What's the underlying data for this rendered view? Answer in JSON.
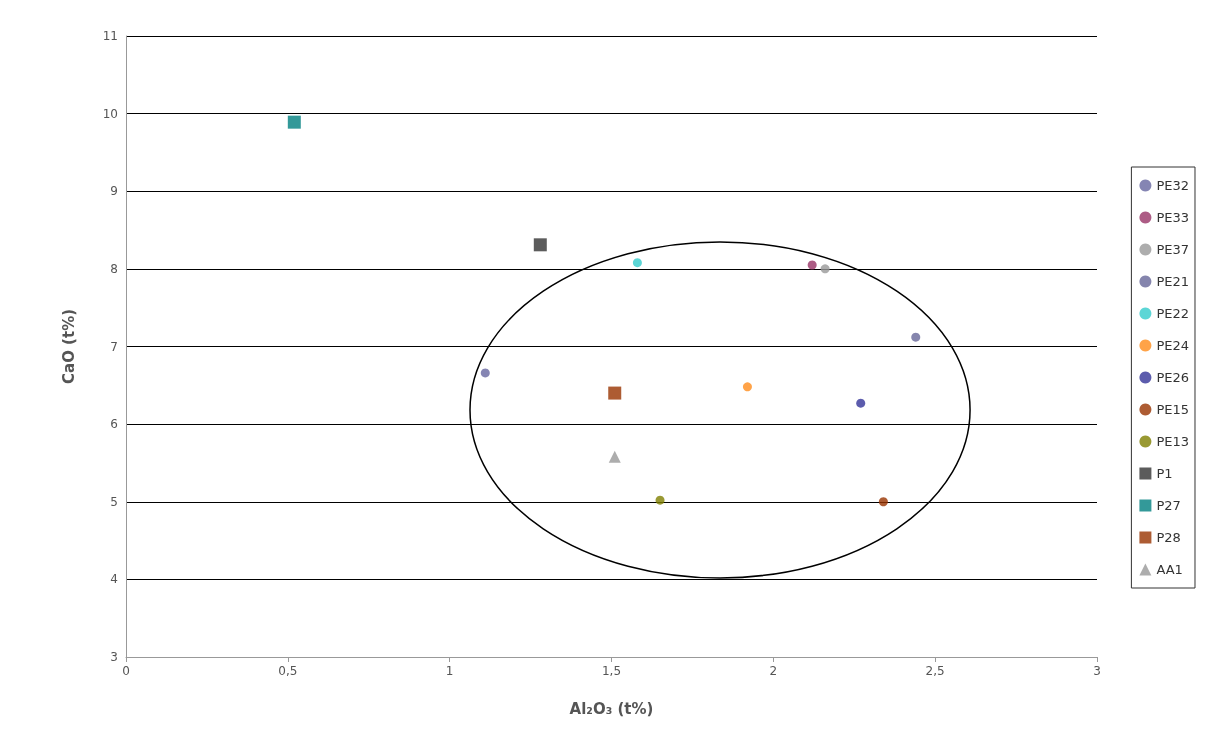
{
  "chart_data": {
    "type": "scatter",
    "xlabel": "Al₂O₃ (t%)",
    "ylabel": "CaO (t%)",
    "xlim": [
      0,
      3
    ],
    "xticks": [
      0,
      {
        "value": 0.5,
        "label": "0,5"
      },
      1,
      {
        "value": 1.5,
        "label": "1,5"
      },
      2,
      {
        "value": 2.5,
        "label": "2,5"
      },
      3
    ],
    "ylim": [
      3,
      11
    ],
    "yticks": [
      3,
      4,
      5,
      6,
      7,
      8,
      9,
      10,
      11
    ],
    "grid": "y",
    "legend": "right",
    "series": [
      {
        "name": "PE32",
        "color": "#6666a0",
        "marker": "circle",
        "x": [
          1.11
        ],
        "values": [
          6.66
        ]
      },
      {
        "name": "PE33",
        "color": "#993366",
        "marker": "circle",
        "x": [
          2.12
        ],
        "values": [
          8.05
        ]
      },
      {
        "name": "PE37",
        "color": "#999999",
        "marker": "circle",
        "x": [
          2.16
        ],
        "values": [
          8.0
        ]
      },
      {
        "name": "PE21",
        "color": "#666699",
        "marker": "circle",
        "x": [
          2.44
        ],
        "values": [
          7.12
        ]
      },
      {
        "name": "PE22",
        "color": "#33cccc",
        "marker": "circle",
        "x": [
          1.58
        ],
        "values": [
          8.08
        ]
      },
      {
        "name": "PE24",
        "color": "#ff8c1a",
        "marker": "circle",
        "x": [
          1.92
        ],
        "values": [
          6.48
        ]
      },
      {
        "name": "PE26",
        "color": "#333399",
        "marker": "circle",
        "x": [
          2.27
        ],
        "values": [
          6.27
        ]
      },
      {
        "name": "PE15",
        "color": "#993300",
        "marker": "circle",
        "x": [
          2.34
        ],
        "values": [
          5.0
        ]
      },
      {
        "name": "PE13",
        "color": "#808000",
        "marker": "circle",
        "x": [
          1.65
        ],
        "values": [
          5.02
        ]
      },
      {
        "name": "P1",
        "color": "#333333",
        "marker": "square",
        "x": [
          1.28
        ],
        "values": [
          8.31
        ]
      },
      {
        "name": "P27",
        "color": "#008080",
        "marker": "square",
        "x": [
          0.52
        ],
        "values": [
          9.89
        ]
      },
      {
        "name": "P28",
        "color": "#993300",
        "marker": "square",
        "x": [
          1.51
        ],
        "values": [
          6.4
        ]
      },
      {
        "name": "AA1",
        "color": "#999999",
        "marker": "triangle",
        "x": [
          1.51
        ],
        "values": [
          5.58
        ]
      }
    ]
  }
}
